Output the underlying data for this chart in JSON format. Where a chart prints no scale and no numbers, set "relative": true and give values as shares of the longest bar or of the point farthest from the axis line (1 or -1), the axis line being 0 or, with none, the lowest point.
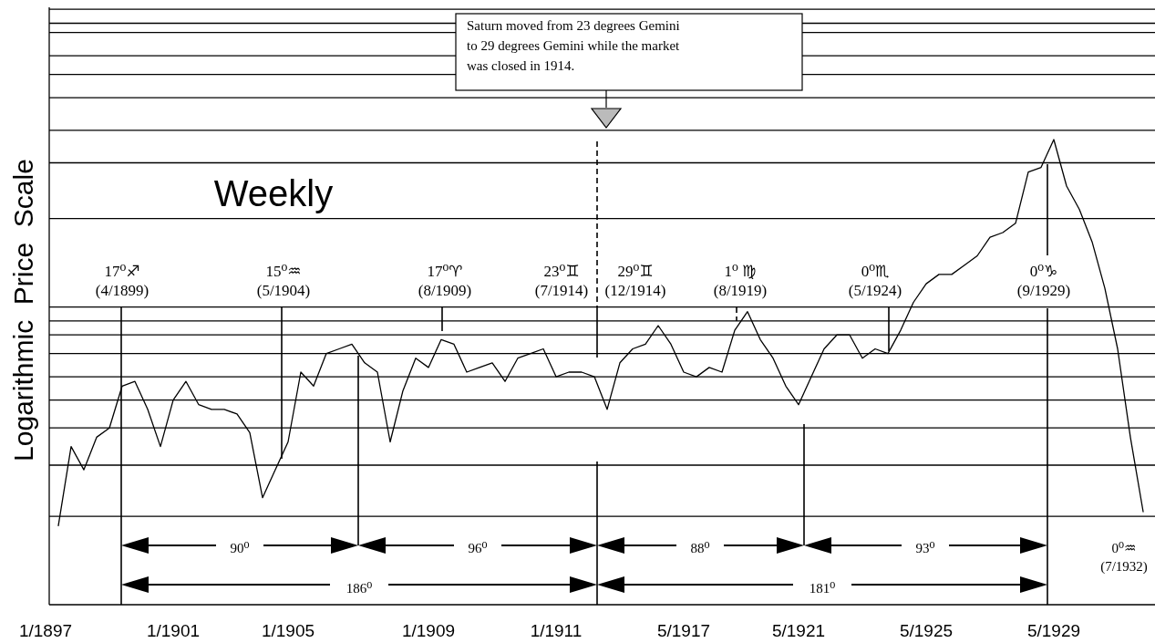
{
  "chart_data": {
    "type": "line",
    "relative": true,
    "ylabel": "Logarithmic  Price  Scale",
    "annotations": [
      "Saturn moved from 23 degrees Gemini\nto 29 degrees Gemini while the market\nwas closed in 1914.",
      "Weekly",
      "17⁰♐\n(4/1899)",
      "15⁰♒\n(5/1904)",
      "17⁰♈\n(8/1909)",
      "23⁰♊\n(7/1914)",
      "29⁰♊\n(12/1914)",
      "1⁰ ♍\n(8/1919)",
      "0⁰♏\n(5/1924)",
      "0⁰♑\n(9/1929)",
      "0⁰♒\n(7/1932)",
      "90⁰",
      "96⁰",
      "88⁰",
      "93⁰",
      "186⁰",
      "181⁰"
    ],
    "categories": [
      "1/1897",
      null,
      null,
      null,
      null,
      null,
      null,
      null,
      null,
      null,
      "1/1901",
      null,
      null,
      null,
      null,
      null,
      null,
      null,
      null,
      "1/1905",
      null,
      null,
      null,
      null,
      null,
      null,
      null,
      null,
      null,
      null,
      "1/1909",
      null,
      null,
      null,
      null,
      null,
      null,
      null,
      null,
      null,
      "1/1911",
      null,
      null,
      null,
      null,
      null,
      null,
      null,
      null,
      null,
      "5/1917",
      null,
      null,
      null,
      null,
      null,
      null,
      null,
      null,
      "5/1921",
      null,
      null,
      null,
      null,
      null,
      null,
      null,
      null,
      null,
      "5/1925",
      null,
      null,
      null,
      null,
      null,
      null,
      null,
      null,
      null,
      "5/1929",
      null,
      null,
      null,
      null,
      null,
      null,
      null
    ],
    "series": [
      {
        "color": "#000000",
        "values": [
          null,
          0.17,
          0.34,
          0.29,
          0.36,
          0.38,
          0.47,
          0.48,
          0.42,
          0.34,
          0.44,
          0.48,
          0.43,
          0.42,
          0.42,
          0.41,
          0.37,
          0.23,
          0.29,
          0.35,
          0.5,
          0.47,
          0.54,
          0.55,
          0.56,
          0.52,
          0.5,
          0.35,
          0.46,
          0.53,
          0.51,
          0.57,
          0.56,
          0.5,
          0.51,
          0.52,
          0.48,
          0.53,
          0.54,
          0.55,
          0.49,
          0.5,
          0.5,
          0.49,
          0.42,
          0.52,
          0.55,
          0.56,
          0.6,
          0.56,
          0.5,
          0.49,
          0.51,
          0.5,
          0.59,
          0.63,
          0.57,
          0.53,
          0.47,
          0.43,
          0.49,
          0.55,
          0.58,
          0.58,
          0.53,
          0.55,
          0.54,
          0.59,
          0.65,
          0.69,
          0.71,
          0.71,
          0.73,
          0.75,
          0.79,
          0.8,
          0.82,
          0.93,
          0.94,
          1,
          0.9,
          0.85,
          0.78,
          0.68,
          0.55,
          0.36,
          0.2
        ]
      }
    ],
    "ref_lines": [
      {
        "axis": "y",
        "value": 1.28
      },
      {
        "axis": "y",
        "value": 1.25
      },
      {
        "axis": "y",
        "value": 1.23
      },
      {
        "axis": "y",
        "value": 1.18
      },
      {
        "axis": "y",
        "value": 1.14
      },
      {
        "axis": "y",
        "value": 1.09
      },
      {
        "axis": "y",
        "value": 1.02
      },
      {
        "axis": "y",
        "value": 0.95
      },
      {
        "axis": "y",
        "value": 0.83
      },
      {
        "axis": "y",
        "value": 0.64
      },
      {
        "axis": "y",
        "value": 0.61
      },
      {
        "axis": "y",
        "value": 0.58
      },
      {
        "axis": "y",
        "value": 0.54
      },
      {
        "axis": "y",
        "value": 0.49
      },
      {
        "axis": "y",
        "value": 0.44
      },
      {
        "axis": "y",
        "value": 0.38
      },
      {
        "axis": "y",
        "value": 0.3
      },
      {
        "axis": "y",
        "value": 0.19
      }
    ]
  }
}
